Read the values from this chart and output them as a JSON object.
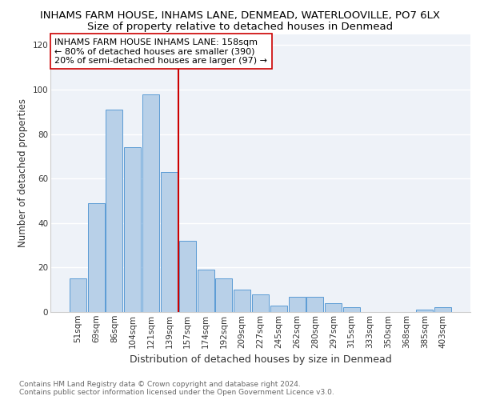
{
  "title": "INHAMS FARM HOUSE, INHAMS LANE, DENMEAD, WATERLOOVILLE, PO7 6LX",
  "subtitle": "Size of property relative to detached houses in Denmead",
  "xlabel": "Distribution of detached houses by size in Denmead",
  "ylabel": "Number of detached properties",
  "categories": [
    "51sqm",
    "69sqm",
    "86sqm",
    "104sqm",
    "121sqm",
    "139sqm",
    "157sqm",
    "174sqm",
    "192sqm",
    "209sqm",
    "227sqm",
    "245sqm",
    "262sqm",
    "280sqm",
    "297sqm",
    "315sqm",
    "333sqm",
    "350sqm",
    "368sqm",
    "385sqm",
    "403sqm"
  ],
  "values": [
    15,
    49,
    91,
    74,
    98,
    63,
    32,
    19,
    15,
    10,
    8,
    3,
    7,
    7,
    4,
    2,
    0,
    0,
    0,
    1,
    2
  ],
  "bar_color": "#b8d0e8",
  "bar_edge_color": "#5b9bd5",
  "vline_x_index": 6,
  "vline_color": "#cc0000",
  "annotation_line1": "INHAMS FARM HOUSE INHAMS LANE: 158sqm",
  "annotation_line2": "← 80% of detached houses are smaller (390)",
  "annotation_line3": "20% of semi-detached houses are larger (97) →",
  "background_color": "#eef2f8",
  "grid_color": "#ffffff",
  "ylim": [
    0,
    125
  ],
  "yticks": [
    0,
    20,
    40,
    60,
    80,
    100,
    120
  ],
  "title_fontsize": 9.5,
  "subtitle_fontsize": 9.5,
  "xlabel_fontsize": 9,
  "ylabel_fontsize": 8.5,
  "tick_fontsize": 7.5,
  "annotation_fontsize": 8,
  "footnote_fontsize": 6.5,
  "footnote": "Contains HM Land Registry data © Crown copyright and database right 2024.\nContains public sector information licensed under the Open Government Licence v3.0."
}
